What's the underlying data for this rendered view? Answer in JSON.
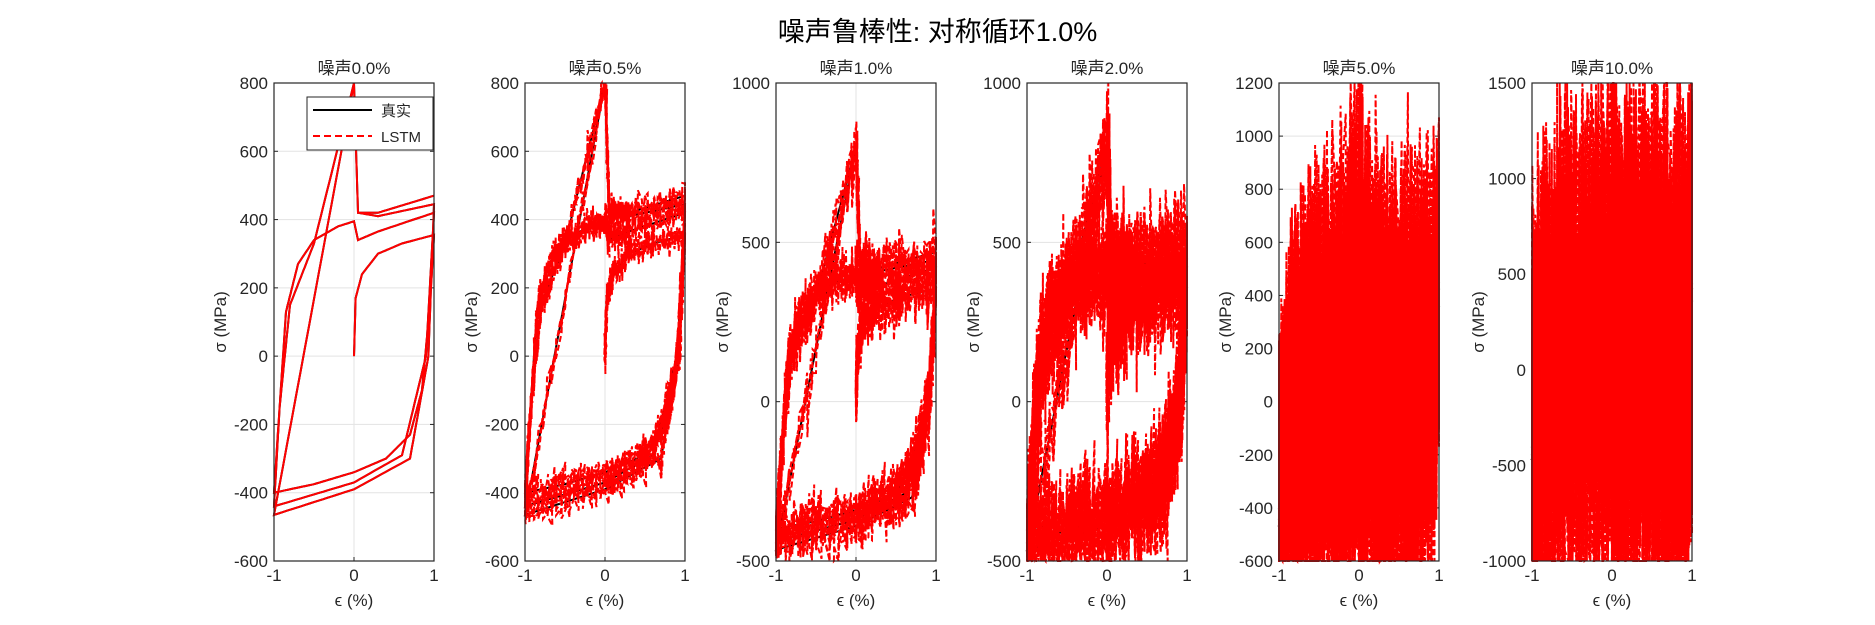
{
  "chart_data": {
    "type": "line",
    "title": "噪声鲁棒性: 对称循环1.0%",
    "legend": {
      "placement": "top-right of first subplot",
      "entries": [
        "真实",
        "LSTM"
      ]
    },
    "series_styles": {
      "true": {
        "name": "真实",
        "color": "#000000",
        "dash": "solid"
      },
      "lstm": {
        "name": "LSTM",
        "color": "#ff0000",
        "dash": "dashed"
      }
    },
    "true_curve": {
      "x": [
        0,
        0.02,
        0.1,
        0.3,
        0.6,
        1,
        0.95,
        0.85,
        0.7,
        0.4,
        0,
        -0.5,
        -1,
        -0.93,
        -0.85,
        -0.7,
        -0.5,
        -0.2,
        0,
        0.05,
        0.3,
        1,
        0.9,
        0.6,
        0,
        -1,
        -0.93,
        -0.8,
        -0.5,
        0,
        0.05,
        0.3,
        1,
        0.93,
        0.7,
        0,
        -1,
        0,
        0.05,
        0.3,
        1
      ],
      "y": [
        0,
        170,
        240,
        300,
        330,
        355,
        150,
        -100,
        -230,
        -300,
        -340,
        -375,
        -400,
        -150,
        130,
        270,
        340,
        380,
        395,
        340,
        365,
        420,
        0,
        -290,
        -370,
        -440,
        -150,
        150,
        330,
        800,
        420,
        410,
        445,
        0,
        -300,
        -390,
        -465,
        800,
        420,
        420,
        470
      ]
    },
    "subplots": [
      {
        "title": "噪声0.0%",
        "noise_pct": 0.0,
        "xlabel": "ϵ (%)",
        "ylabel": "σ (MPa)",
        "xlim": [
          -1,
          1
        ],
        "xticks": [
          "-1",
          "0",
          "1"
        ],
        "ylim": [
          -600,
          800
        ],
        "yticks": [
          "-600",
          "-400",
          "-200",
          "0",
          "200",
          "400",
          "600",
          "800"
        ],
        "grid": true
      },
      {
        "title": "噪声0.5%",
        "noise_pct": 0.5,
        "xlabel": "ϵ (%)",
        "ylabel": "σ (MPa)",
        "xlim": [
          -1,
          1
        ],
        "xticks": [
          "-1",
          "0",
          "1"
        ],
        "ylim": [
          -600,
          800
        ],
        "yticks": [
          "-600",
          "-400",
          "-200",
          "0",
          "200",
          "400",
          "600",
          "800"
        ],
        "grid": true
      },
      {
        "title": "噪声1.0%",
        "noise_pct": 1.0,
        "xlabel": "ϵ (%)",
        "ylabel": "σ (MPa)",
        "xlim": [
          -1,
          1
        ],
        "xticks": [
          "-1",
          "0",
          "1"
        ],
        "ylim": [
          -500,
          1000
        ],
        "yticks": [
          "-500",
          "0",
          "500",
          "1000"
        ],
        "grid": true
      },
      {
        "title": "噪声2.0%",
        "noise_pct": 2.0,
        "xlabel": "ϵ (%)",
        "ylabel": "σ (MPa)",
        "xlim": [
          -1,
          1
        ],
        "xticks": [
          "-1",
          "0",
          "1"
        ],
        "ylim": [
          -500,
          1000
        ],
        "yticks": [
          "-500",
          "0",
          "500",
          "1000"
        ],
        "grid": true
      },
      {
        "title": "噪声5.0%",
        "noise_pct": 5.0,
        "xlabel": "ϵ (%)",
        "ylabel": "σ (MPa)",
        "xlim": [
          -1,
          1
        ],
        "xticks": [
          "-1",
          "0",
          "1"
        ],
        "ylim": [
          -600,
          1200
        ],
        "yticks": [
          "-600",
          "-400",
          "-200",
          "0",
          "200",
          "400",
          "600",
          "800",
          "1000",
          "1200"
        ],
        "grid": true
      },
      {
        "title": "噪声10.0%",
        "noise_pct": 10.0,
        "xlabel": "ϵ (%)",
        "ylabel": "σ (MPa)",
        "xlim": [
          -1,
          1
        ],
        "xticks": [
          "-1",
          "0",
          "1"
        ],
        "ylim": [
          -1000,
          1500
        ],
        "yticks": [
          "-1000",
          "-500",
          "0",
          "500",
          "1000",
          "1500"
        ],
        "grid": true
      }
    ]
  }
}
